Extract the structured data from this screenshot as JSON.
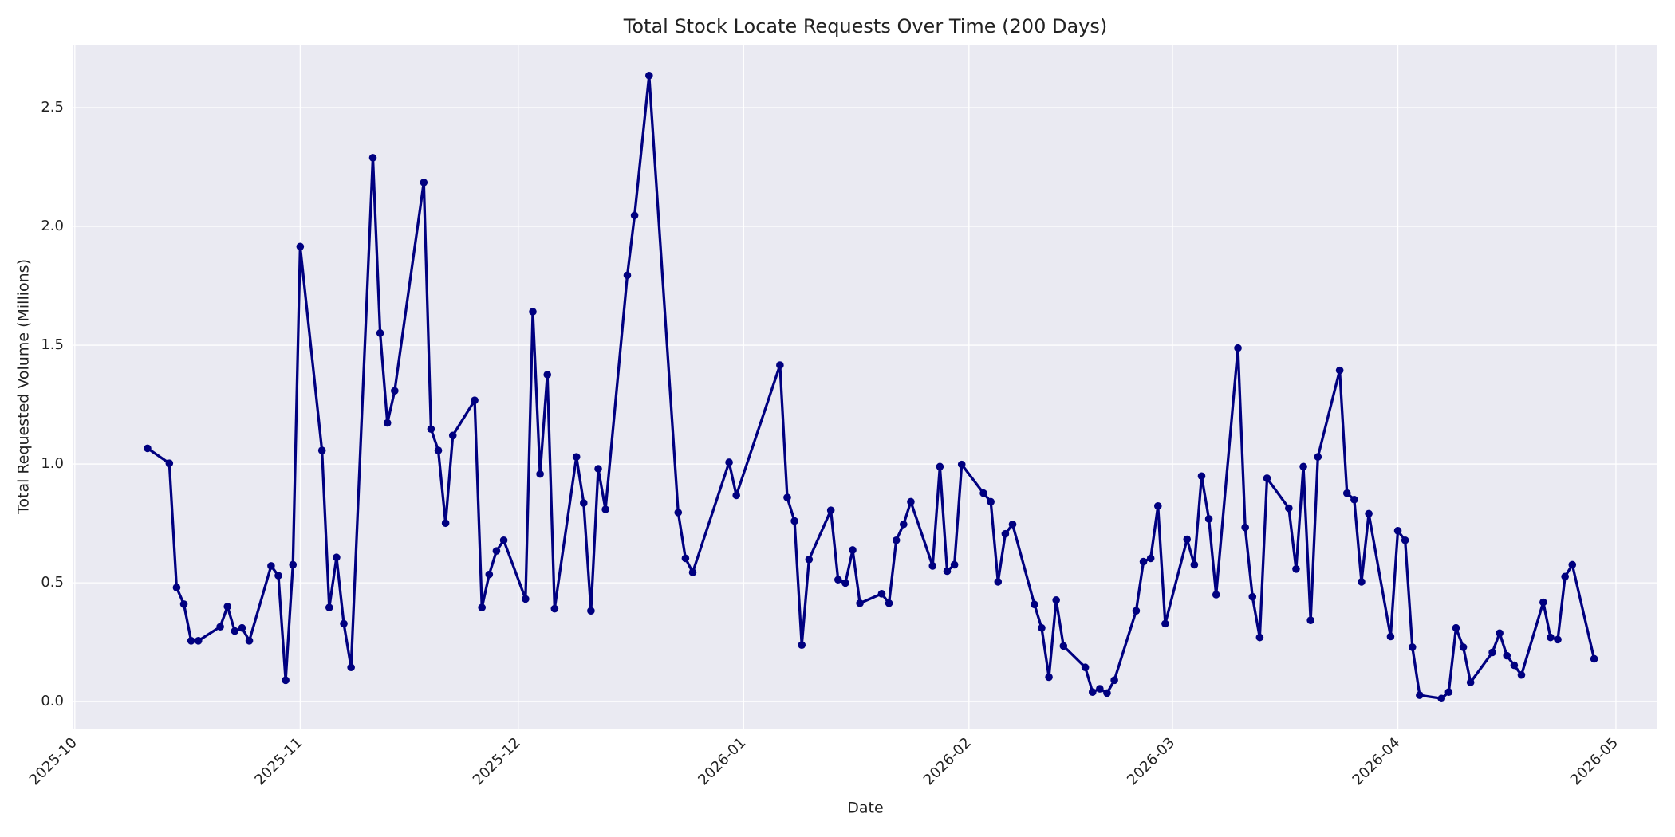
{
  "chart_data": {
    "type": "line",
    "title": "Total Stock Locate Requests Over Time (200 Days)",
    "xlabel": "Date",
    "ylabel": "Total Requested Volume (Millions)",
    "color": "#000080",
    "grid": true,
    "x": [
      10,
      13,
      14,
      15,
      16,
      17,
      20,
      21,
      22,
      23,
      24,
      27,
      28,
      29,
      30,
      31,
      34,
      35,
      36,
      37,
      38,
      41,
      42,
      43,
      44,
      48,
      49,
      50,
      51,
      52,
      55,
      56,
      57,
      58,
      59,
      62,
      63,
      64,
      65,
      66,
      69,
      70,
      71,
      72,
      73,
      76,
      77,
      79,
      83,
      84,
      85,
      90,
      91,
      97,
      98,
      99,
      100,
      101,
      104,
      105,
      106,
      107,
      108,
      111,
      112,
      113,
      114,
      115,
      118,
      119,
      120,
      121,
      122,
      125,
      126,
      127,
      128,
      129,
      132,
      133,
      134,
      135,
      136,
      139,
      140,
      141,
      142,
      143,
      146,
      147,
      148,
      149,
      150,
      153,
      154,
      155,
      156,
      157,
      160,
      161,
      162,
      163,
      164,
      167,
      168,
      169,
      170,
      171,
      174,
      175,
      176,
      177,
      178,
      181,
      182,
      183,
      184,
      185,
      188,
      189,
      190,
      191,
      192,
      195,
      196,
      197,
      198,
      199,
      202,
      203,
      204,
      205,
      206,
      209
    ],
    "values": [
      1.066,
      1.003,
      0.48,
      0.41,
      0.256,
      0.256,
      0.315,
      0.4,
      0.297,
      0.31,
      0.256,
      0.571,
      0.53,
      0.09,
      0.576,
      1.915,
      1.057,
      0.396,
      0.607,
      0.328,
      0.144,
      2.289,
      1.551,
      1.173,
      1.308,
      2.185,
      1.147,
      1.057,
      0.751,
      1.12,
      1.268,
      0.396,
      0.535,
      0.634,
      0.679,
      0.432,
      1.641,
      0.958,
      1.376,
      0.391,
      1.03,
      0.836,
      0.382,
      0.98,
      0.809,
      1.794,
      2.046,
      2.635,
      0.796,
      0.603,
      0.544,
      1.007,
      0.868,
      1.416,
      0.859,
      0.76,
      0.238,
      0.598,
      0.805,
      0.513,
      0.499,
      0.638,
      0.414,
      0.454,
      0.414,
      0.679,
      0.746,
      0.841,
      0.571,
      0.989,
      0.549,
      0.576,
      0.998,
      0.877,
      0.841,
      0.504,
      0.706,
      0.746,
      0.409,
      0.31,
      0.103,
      0.427,
      0.234,
      0.144,
      0.04,
      0.054,
      0.036,
      0.09,
      0.382,
      0.589,
      0.603,
      0.823,
      0.328,
      0.683,
      0.576,
      0.949,
      0.769,
      0.45,
      1.488,
      0.733,
      0.441,
      0.27,
      0.94,
      0.814,
      0.558,
      0.989,
      0.342,
      1.03,
      1.394,
      0.877,
      0.85,
      0.504,
      0.791,
      0.274,
      0.719,
      0.679,
      0.229,
      0.027,
      0.013,
      0.04,
      0.31,
      0.229,
      0.081,
      0.207,
      0.288,
      0.193,
      0.153,
      0.112,
      0.418,
      0.27,
      0.261,
      0.526,
      0.576,
      0.18
    ],
    "xlim": [
      -0.2,
      217.6
    ],
    "ylim": [
      -0.117,
      2.765
    ],
    "xticks": [
      {
        "value": 0,
        "label": "2025-10"
      },
      {
        "value": 31,
        "label": "2025-11"
      },
      {
        "value": 61,
        "label": "2025-12"
      },
      {
        "value": 92,
        "label": "2026-01"
      },
      {
        "value": 123,
        "label": "2026-02"
      },
      {
        "value": 151,
        "label": "2026-03"
      },
      {
        "value": 182,
        "label": "2026-04"
      },
      {
        "value": 212,
        "label": "2026-05"
      }
    ],
    "yticks": [
      {
        "value": 0,
        "label": "0.0"
      },
      0.5,
      {
        "value": 1,
        "label": "1.0"
      },
      1.5,
      {
        "value": 2,
        "label": "2.0"
      },
      2.5
    ]
  }
}
